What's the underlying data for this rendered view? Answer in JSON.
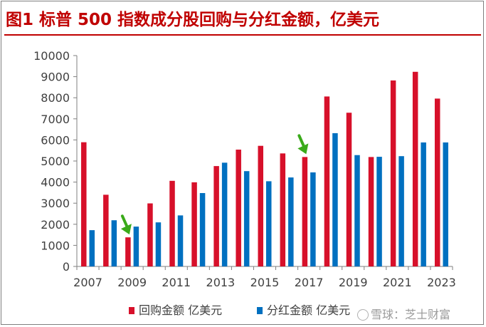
{
  "header": {
    "title": "图1  标普 500 指数成分股回购与分红金额，亿美元"
  },
  "watermark": {
    "text": "雪球：芝士财富",
    "icon": "snowball-logo-icon"
  },
  "colors": {
    "title": "#c00000",
    "buyback": "#d7102a",
    "dividend": "#0070c0",
    "arrow": "#3aaa1a"
  },
  "chart_data": {
    "type": "bar",
    "title": "",
    "xlabel": "",
    "ylabel": "",
    "categories": [
      "2007",
      "2008",
      "2009",
      "2010",
      "2011",
      "2012",
      "2013",
      "2014",
      "2015",
      "2016",
      "2017",
      "2018",
      "2019",
      "2020",
      "2021",
      "2022",
      "2023"
    ],
    "x_tick_labels": [
      "2007",
      "2009",
      "2011",
      "2013",
      "2015",
      "2017",
      "2019",
      "2021",
      "2023"
    ],
    "series": [
      {
        "name": "回购金额 亿美元",
        "color": "#d7102a",
        "values": [
          5890,
          3400,
          1380,
          2990,
          4060,
          3990,
          4760,
          5540,
          5720,
          5360,
          5190,
          8060,
          7290,
          5190,
          8820,
          9230,
          7960
        ]
      },
      {
        "name": "分红金额 亿美元",
        "color": "#0070c0",
        "values": [
          1720,
          2190,
          1890,
          2090,
          2420,
          3480,
          4920,
          4520,
          4040,
          4220,
          4460,
          6320,
          5280,
          5200,
          5230,
          5880,
          5880
        ]
      }
    ],
    "ylim": [
      0,
      10000
    ],
    "yticks": [
      0,
      1000,
      2000,
      3000,
      4000,
      5000,
      6000,
      7000,
      8000,
      9000,
      10000
    ],
    "grid": false,
    "legend_position": "bottom",
    "annotations": [
      {
        "type": "arrow",
        "category": "2009",
        "color": "#3aaa1a"
      },
      {
        "type": "arrow",
        "category": "2017",
        "color": "#3aaa1a"
      }
    ]
  }
}
